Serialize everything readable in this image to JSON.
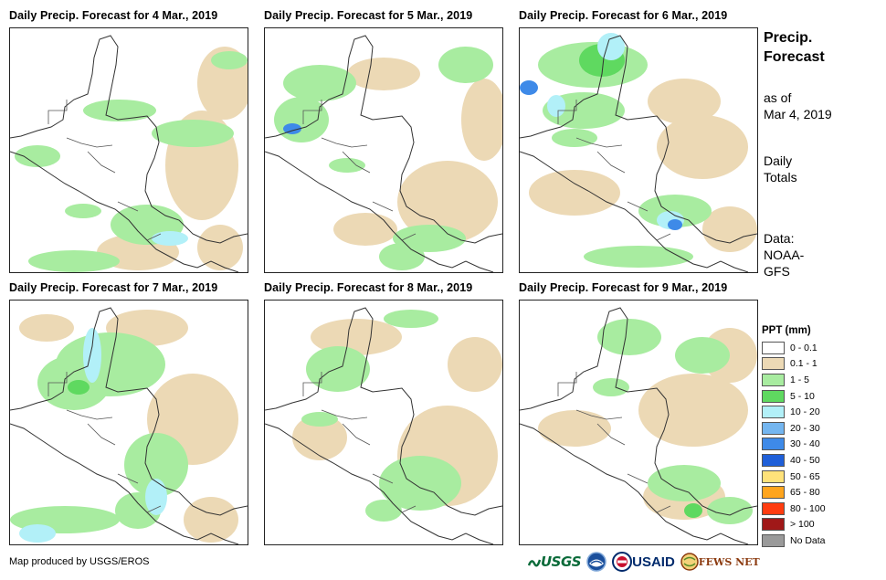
{
  "panels": [
    {
      "title": "Daily Precip. Forecast for 4 Mar., 2019",
      "variant": 0
    },
    {
      "title": "Daily Precip. Forecast for 5 Mar., 2019",
      "variant": 1
    },
    {
      "title": "Daily Precip. Forecast for 6 Mar., 2019",
      "variant": 2
    },
    {
      "title": "Daily Precip. Forecast for 7 Mar., 2019",
      "variant": 3
    },
    {
      "title": "Daily Precip. Forecast for 8 Mar., 2019",
      "variant": 4
    },
    {
      "title": "Daily Precip. Forecast for 9 Mar., 2019",
      "variant": 5
    }
  ],
  "side": {
    "title_line1": "Precip.",
    "title_line2": "Forecast",
    "asof_line1": "as of",
    "asof_line2": "Mar 4, 2019",
    "totals_line1": "Daily",
    "totals_line2": "Totals",
    "data_line1": "Data:",
    "data_line2": "NOAA-",
    "data_line3": "GFS"
  },
  "legend": {
    "title": "PPT (mm)",
    "items": [
      {
        "label": "0 - 0.1",
        "color": "#ffffff"
      },
      {
        "label": "0.1 - 1",
        "color": "#ecd9b5"
      },
      {
        "label": "1 - 5",
        "color": "#a8eca0"
      },
      {
        "label": "5 - 10",
        "color": "#5fd960"
      },
      {
        "label": "10 - 20",
        "color": "#b2f0f8"
      },
      {
        "label": "20 - 30",
        "color": "#74b6f0"
      },
      {
        "label": "30 - 40",
        "color": "#3e8ae8"
      },
      {
        "label": "40 - 50",
        "color": "#1f5fd8"
      },
      {
        "label": "50 - 65",
        "color": "#ffe27a"
      },
      {
        "label": "65 - 80",
        "color": "#ffa51e"
      },
      {
        "label": "80 - 100",
        "color": "#ff3c10"
      },
      {
        "label": "> 100",
        "color": "#a01818"
      },
      {
        "label": "No Data",
        "color": "#9a9a9a"
      }
    ]
  },
  "credit": "Map produced by USGS/EROS",
  "logos": {
    "usgs": "USGS",
    "usaid": "USAID",
    "fews": "FEWS NET"
  }
}
